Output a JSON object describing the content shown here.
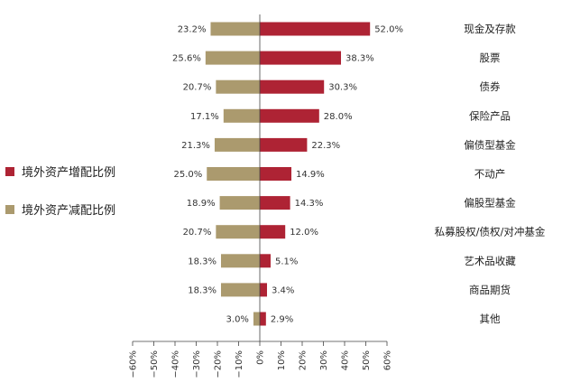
{
  "chart_data": {
    "type": "bar",
    "orientation": "horizontal-diverging",
    "categories": [
      "现金及存款",
      "股票",
      "债券",
      "保险产品",
      "偏债型基金",
      "不动产",
      "偏股型基金",
      "私募股权/债权/对冲基金",
      "艺术品收藏",
      "商品期货",
      "其他"
    ],
    "series": [
      {
        "name": "境外资产增配比例",
        "color": "#ae2334",
        "values": [
          52.0,
          38.3,
          30.3,
          28.0,
          22.3,
          14.9,
          14.3,
          12.0,
          5.1,
          3.4,
          2.9
        ],
        "labels": [
          "52.0%",
          "38.3%",
          "30.3%",
          "28.0%",
          "22.3%",
          "14.9%",
          "14.3%",
          "12.0%",
          "5.1%",
          "3.4%",
          "2.9%"
        ]
      },
      {
        "name": "境外资产减配比例",
        "color": "#ab9a6e",
        "values": [
          23.2,
          25.6,
          20.7,
          17.1,
          21.3,
          25.0,
          18.9,
          20.7,
          18.3,
          18.3,
          3.0
        ],
        "labels": [
          "23.2%",
          "25.6%",
          "20.7%",
          "17.1%",
          "21.3%",
          "25.0%",
          "18.9%",
          "20.7%",
          "18.3%",
          "18.3%",
          "3.0%"
        ]
      }
    ],
    "xlim": [
      -60,
      60
    ],
    "xticks": [
      -60,
      -50,
      -40,
      -30,
      -20,
      -10,
      0,
      10,
      20,
      30,
      40,
      50,
      60
    ],
    "xtick_labels": [
      "−60%",
      "−50%",
      "−40%",
      "−30%",
      "−20%",
      "−10%",
      "0%",
      "10%",
      "20%",
      "30%",
      "40%",
      "50%",
      "60%"
    ],
    "legend_position": "left",
    "grid": false
  }
}
